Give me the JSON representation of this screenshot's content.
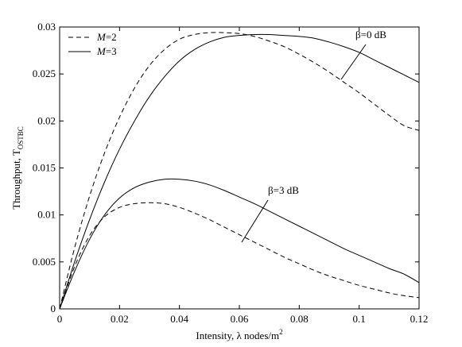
{
  "chart_data": {
    "type": "line",
    "xlabel": "Intensity, λ nodes/m",
    "xlabel_sup": "2",
    "ylabel": "Throughput, T",
    "ylabel_sub": "OSTBC",
    "xlim": [
      0,
      0.12
    ],
    "ylim": [
      0,
      0.03
    ],
    "xticks": [
      0,
      0.02,
      0.04,
      0.06,
      0.08,
      0.1,
      0.12
    ],
    "xtick_labels": [
      "0",
      "0.02",
      "0.04",
      "0.06",
      "0.08",
      "0.1",
      "0.12"
    ],
    "yticks": [
      0,
      0.005,
      0.01,
      0.015,
      0.02,
      0.025,
      0.03
    ],
    "ytick_labels": [
      "0",
      "0.005",
      "0.01",
      "0.015",
      "0.02",
      "0.025",
      "0.03"
    ],
    "grid": false,
    "legend_position": "top-left",
    "legend": [
      {
        "var": "M",
        "value": "=2",
        "style": "dashed"
      },
      {
        "var": "M",
        "value": "=3",
        "style": "solid"
      }
    ],
    "annotations": [
      {
        "text": "β=0 dB"
      },
      {
        "text": "β=3 dB"
      }
    ],
    "x": [
      0,
      0.005,
      0.01,
      0.015,
      0.02,
      0.025,
      0.03,
      0.035,
      0.04,
      0.045,
      0.05,
      0.055,
      0.06,
      0.065,
      0.07,
      0.075,
      0.08,
      0.085,
      0.09,
      0.095,
      0.1,
      0.105,
      0.11,
      0.115,
      0.12
    ],
    "series": [
      {
        "name": "M=2, β=0 dB",
        "style": "dashed",
        "values": [
          0,
          0.0065,
          0.012,
          0.0166,
          0.0204,
          0.0235,
          0.0259,
          0.0276,
          0.0287,
          0.0292,
          0.0294,
          0.0294,
          0.0293,
          0.029,
          0.0285,
          0.0279,
          0.0271,
          0.0262,
          0.0252,
          0.0241,
          0.023,
          0.0218,
          0.0206,
          0.0195,
          0.019
        ]
      },
      {
        "name": "M=3, β=0 dB",
        "style": "solid",
        "values": [
          0,
          0.005,
          0.0095,
          0.0135,
          0.017,
          0.02,
          0.0226,
          0.0247,
          0.0264,
          0.0276,
          0.0284,
          0.0289,
          0.0291,
          0.0292,
          0.0292,
          0.0291,
          0.029,
          0.0288,
          0.0284,
          0.0279,
          0.0273,
          0.0265,
          0.0257,
          0.0249,
          0.0241
        ]
      },
      {
        "name": "M=2, β=3 dB",
        "style": "dashed",
        "values": [
          0,
          0.0045,
          0.0078,
          0.0098,
          0.0108,
          0.0112,
          0.0113,
          0.0112,
          0.0108,
          0.0102,
          0.0095,
          0.0087,
          0.0079,
          0.0071,
          0.0063,
          0.0055,
          0.0048,
          0.0041,
          0.0035,
          0.003,
          0.0025,
          0.0021,
          0.0017,
          0.0014,
          0.0012
        ]
      },
      {
        "name": "M=3, β=3 dB",
        "style": "solid",
        "values": [
          0,
          0.004,
          0.0074,
          0.01,
          0.0118,
          0.0129,
          0.0135,
          0.0138,
          0.0138,
          0.0136,
          0.0132,
          0.0126,
          0.0119,
          0.0112,
          0.0104,
          0.0096,
          0.0088,
          0.008,
          0.0072,
          0.0064,
          0.0057,
          0.005,
          0.0043,
          0.0037,
          0.0028
        ]
      }
    ]
  }
}
